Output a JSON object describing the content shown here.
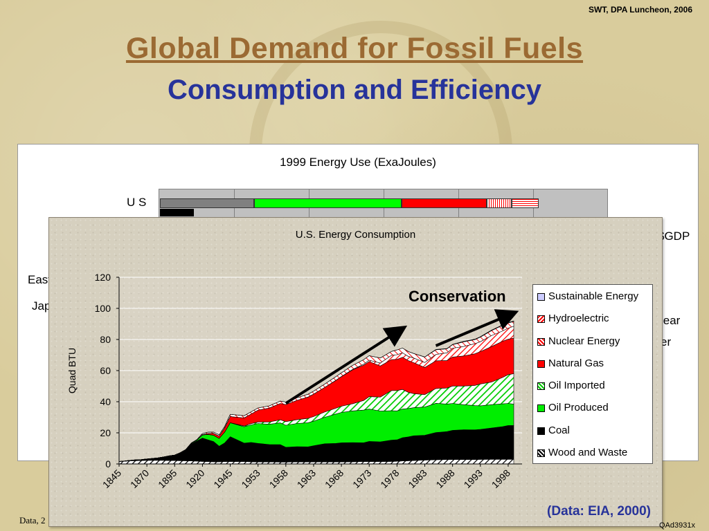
{
  "slide": {
    "header_note": "SWT, DPA Luncheon, 2006",
    "title": "Global Demand for Fossil Fuels",
    "subtitle": "Consumption and Efficiency",
    "footer_left": "Data, 2",
    "footer_right": "QAd3931x",
    "source": "(Data: EIA, 2000)"
  },
  "back_chart": {
    "title": "1999 Energy Use (ExaJoules)",
    "row_labels": [
      "U S",
      "East",
      "Jap"
    ],
    "right_labels": [
      "$GDP",
      "lear",
      "er"
    ],
    "us_segments": [
      {
        "name": "coal",
        "fraction": 0.21,
        "color": "#808080",
        "pattern": "solid"
      },
      {
        "name": "oil",
        "fraction": 0.33,
        "color": "#00ff00",
        "pattern": "solid"
      },
      {
        "name": "gas",
        "fraction": 0.19,
        "color": "#ff0000",
        "pattern": "solid"
      },
      {
        "name": "nuclear",
        "fraction": 0.055,
        "color": "#ff0000",
        "pattern": "vertical"
      },
      {
        "name": "hydro",
        "fraction": 0.06,
        "color": "#ff0000",
        "pattern": "horizontal"
      }
    ],
    "us_black_bar_fraction": 0.075
  },
  "chart_data": {
    "type": "area",
    "title": "U.S. Energy Consumption",
    "ylabel": "Quad BTU",
    "xlabel": "",
    "ylim": [
      0,
      120
    ],
    "yticks": [
      0,
      20,
      40,
      60,
      80,
      100,
      120
    ],
    "x_tick_labels": [
      "1845",
      "1870",
      "1895",
      "1920",
      "1945",
      "1953",
      "1958",
      "1963",
      "1968",
      "1973",
      "1978",
      "1983",
      "1988",
      "1993",
      "1998"
    ],
    "x": [
      "1845",
      "1850",
      "1855",
      "1860",
      "1865",
      "1870",
      "1875",
      "1880",
      "1885",
      "1890",
      "1895",
      "1900",
      "1905",
      "1910",
      "1915",
      "1920",
      "1925",
      "1930",
      "1935",
      "1940",
      "1945",
      "1949",
      "1951",
      "1953",
      "1955",
      "1957",
      "1958",
      "1960",
      "1962",
      "1963",
      "1965",
      "1967",
      "1968",
      "1970",
      "1972",
      "1973",
      "1975",
      "1977",
      "1978",
      "1979",
      "1980",
      "1981",
      "1983",
      "1985",
      "1987",
      "1988",
      "1990",
      "1992",
      "1993",
      "1995",
      "1997",
      "1998",
      "1999"
    ],
    "stacking": "cumulative",
    "series": [
      {
        "name": "Wood and Waste",
        "color": "#ffffff",
        "pattern": "diagonal-black",
        "values": [
          1.5,
          1.7,
          2,
          2.1,
          2.2,
          2.3,
          2.3,
          2.3,
          2.3,
          2.2,
          2.2,
          2.1,
          2,
          1.9,
          1.8,
          1.6,
          1.5,
          1.4,
          1.4,
          1.5,
          1.5,
          1.5,
          1.4,
          1.3,
          1.3,
          1.2,
          1.2,
          1.3,
          1.3,
          1.3,
          1.4,
          1.3,
          1.3,
          1.4,
          1.5,
          1.5,
          1.5,
          1.6,
          1.7,
          1.9,
          2,
          2.2,
          2.5,
          2.7,
          2.8,
          2.8,
          2.8,
          2.8,
          2.9,
          3,
          3,
          3,
          3
        ]
      },
      {
        "name": "Coal",
        "color": "#000000",
        "pattern": "solid",
        "values": [
          0.1,
          0.2,
          0.3,
          0.5,
          0.6,
          0.9,
          1.2,
          1.6,
          2.2,
          3,
          3.5,
          5,
          7,
          11,
          13,
          15,
          14,
          13,
          10,
          12,
          16,
          11.9,
          12.4,
          11.9,
          11.2,
          11.2,
          9.5,
          9.8,
          9.7,
          10.4,
          11.6,
          11.9,
          12.3,
          12.3,
          12.1,
          13,
          12.7,
          13.7,
          13.8,
          15,
          15.4,
          15.9,
          15.9,
          17.5,
          18,
          18.8,
          19.2,
          19.1,
          19.3,
          20.1,
          21,
          21.7,
          21.7
        ]
      },
      {
        "name": "Oil Produced",
        "color": "#00ee00",
        "pattern": "solid",
        "values": [
          0,
          0,
          0,
          0,
          0,
          0,
          0,
          0,
          0,
          0,
          0,
          0.1,
          0.2,
          0.4,
          0.6,
          2,
          3.5,
          4,
          5,
          7,
          9,
          10.5,
          11.3,
          12.8,
          13,
          14,
          14.2,
          14.9,
          15.5,
          15.8,
          17,
          18.9,
          19.5,
          20.4,
          21,
          20.8,
          19.8,
          18.9,
          18.6,
          18.4,
          18.2,
          18.1,
          18.2,
          18.8,
          17.7,
          17.3,
          16.1,
          15.6,
          15.2,
          15,
          14.6,
          14.2,
          13.8
        ]
      },
      {
        "name": "Oil Imported",
        "color": "#ffffff",
        "pattern": "diagonal-green",
        "values": [
          0,
          0,
          0,
          0,
          0,
          0,
          0,
          0,
          0,
          0,
          0,
          0,
          0,
          0,
          0,
          0,
          0,
          0,
          0,
          0,
          0,
          0.5,
          0.8,
          1,
          1.5,
          2,
          2.3,
          2.5,
          2.8,
          3,
          3.4,
          3.7,
          4,
          4.6,
          6.2,
          8,
          9,
          13,
          13.1,
          12.6,
          10.5,
          9,
          8,
          9.5,
          10.3,
          11.2,
          12,
          13,
          14,
          14.5,
          17,
          18.5,
          19.5
        ]
      },
      {
        "name": "Natural Gas",
        "color": "#ff0000",
        "pattern": "solid",
        "values": [
          0,
          0,
          0,
          0,
          0,
          0,
          0,
          0,
          0,
          0,
          0,
          0,
          0,
          0,
          0,
          0.3,
          0.6,
          1.3,
          1.5,
          2.7,
          4,
          5.2,
          6.2,
          7.6,
          8.9,
          10.5,
          11,
          12.4,
          13.7,
          14.4,
          15.8,
          17.9,
          19,
          21.8,
          22.7,
          22.5,
          20,
          19.9,
          20,
          20.7,
          20.4,
          19.9,
          17.4,
          17.8,
          17.7,
          18.6,
          19.3,
          20.3,
          20.8,
          22.8,
          23.3,
          22.8,
          22.9
        ]
      },
      {
        "name": "Nuclear Energy",
        "color": "#ffffff",
        "pattern": "diagonal-red",
        "values": [
          0,
          0,
          0,
          0,
          0,
          0,
          0,
          0,
          0,
          0,
          0,
          0,
          0,
          0,
          0,
          0,
          0,
          0,
          0,
          0,
          0,
          0,
          0,
          0,
          0,
          0,
          0,
          0,
          0.01,
          0.04,
          0.04,
          0.09,
          0.14,
          0.24,
          0.6,
          0.9,
          1.9,
          2.7,
          3.0,
          2.8,
          2.7,
          3.0,
          3.2,
          4.1,
          4.9,
          5.7,
          6.1,
          6.5,
          6.4,
          7.1,
          6.6,
          7.1,
          7.6
        ]
      },
      {
        "name": "Hydroelectric",
        "color": "#ffffff",
        "pattern": "hatch-red",
        "values": [
          0,
          0,
          0,
          0,
          0,
          0,
          0,
          0,
          0,
          0,
          0,
          0,
          0.1,
          0.2,
          0.3,
          0.7,
          0.8,
          0.8,
          0.8,
          0.9,
          1.4,
          1.4,
          1.4,
          1.4,
          1.4,
          1.5,
          1.6,
          1.6,
          1.8,
          1.8,
          2.1,
          2.3,
          2.3,
          2.6,
          2.9,
          2.9,
          3.2,
          2.5,
          3.1,
          3.1,
          3.1,
          2.9,
          3.5,
          3,
          2.6,
          2.3,
          3,
          2.6,
          2.9,
          3.2,
          3.6,
          3.3,
          3.1
        ]
      },
      {
        "name": "Sustainable Energy",
        "color": "#ccccff",
        "pattern": "solid",
        "values": [
          0,
          0,
          0,
          0,
          0,
          0,
          0,
          0,
          0,
          0,
          0,
          0,
          0,
          0,
          0,
          0,
          0,
          0,
          0,
          0,
          0,
          0,
          0,
          0,
          0,
          0,
          0,
          0,
          0,
          0,
          0,
          0,
          0,
          0,
          0,
          0,
          0,
          0,
          0,
          0,
          0,
          0,
          0.1,
          0.2,
          0.2,
          0.2,
          0.3,
          0.3,
          0.3,
          0.3,
          0.3,
          0.3,
          0.3
        ]
      }
    ],
    "annotation": "Conservation",
    "legend_placement": "right",
    "legend_order": [
      "Sustainable Energy",
      "Hydroelectric",
      "Nuclear Energy",
      "Natural Gas",
      "Oil Imported",
      "Oil Produced",
      "Coal",
      "Wood and Waste"
    ],
    "grid": "horizontal"
  }
}
